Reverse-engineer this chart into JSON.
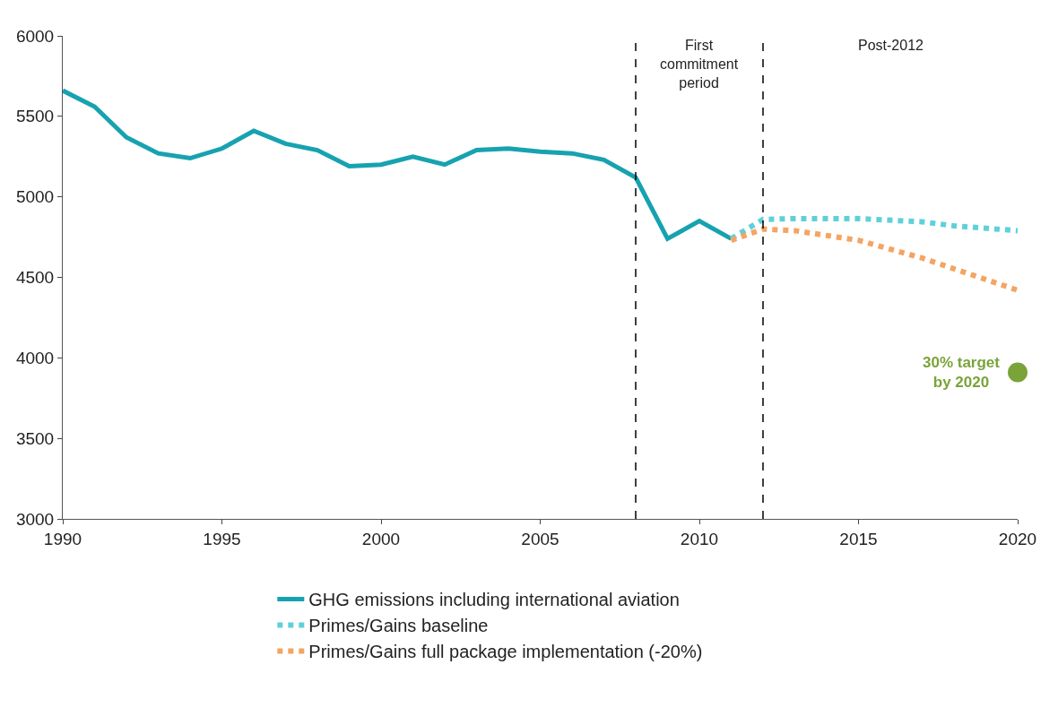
{
  "chart_data": {
    "type": "line",
    "xlim": [
      1990,
      2020
    ],
    "xticks": [
      1990,
      1995,
      2000,
      2005,
      2010,
      2015,
      2020
    ],
    "ylim": [
      3000,
      6000
    ],
    "yticks": [
      3000,
      3500,
      4000,
      4500,
      5000,
      5500,
      6000
    ],
    "legend": "bottom",
    "series": [
      {
        "name": "GHG emissions including international aviation",
        "color": "#17a2b0",
        "line_style": "solid",
        "x": [
          1990,
          1991,
          1992,
          1993,
          1994,
          1995,
          1996,
          1997,
          1998,
          1999,
          2000,
          2001,
          2002,
          2003,
          2004,
          2005,
          2006,
          2007,
          2008,
          2009,
          2010,
          2011
        ],
        "values": [
          5660,
          5560,
          5370,
          5270,
          5240,
          5300,
          5410,
          5330,
          5290,
          5190,
          5200,
          5250,
          5200,
          5290,
          5300,
          5280,
          5270,
          5230,
          5120,
          4740,
          4850,
          4740
        ]
      },
      {
        "name": "Primes/Gains baseline",
        "color": "#5fd0da",
        "line_style": "dotted",
        "x": [
          2011,
          2012,
          2013,
          2015,
          2017,
          2018,
          2020
        ],
        "values": [
          4740,
          4860,
          4865,
          4865,
          4845,
          4820,
          4790
        ]
      },
      {
        "name": "Primes/Gains full package implementation (-20%)",
        "color": "#f4a463",
        "line_style": "dotted",
        "x": [
          2011,
          2012,
          2013,
          2015,
          2017,
          2020
        ],
        "values": [
          4730,
          4800,
          4790,
          4730,
          4620,
          4420
        ]
      },
      {
        "type": "scatter",
        "marker": "circle",
        "color": "#7aa33a",
        "x": [
          2020
        ],
        "values": [
          3910
        ]
      }
    ],
    "ref_lines": [
      {
        "axis": "x",
        "value": 2008,
        "color": "#000000",
        "line_style": "dashed"
      },
      {
        "axis": "x",
        "value": 2012,
        "color": "#000000",
        "line_style": "dashed"
      }
    ],
    "annotations": [
      "First commitment period",
      "Post-2012",
      {
        "text": "30% target by 2020",
        "x": 2020,
        "y": 3910
      }
    ]
  }
}
